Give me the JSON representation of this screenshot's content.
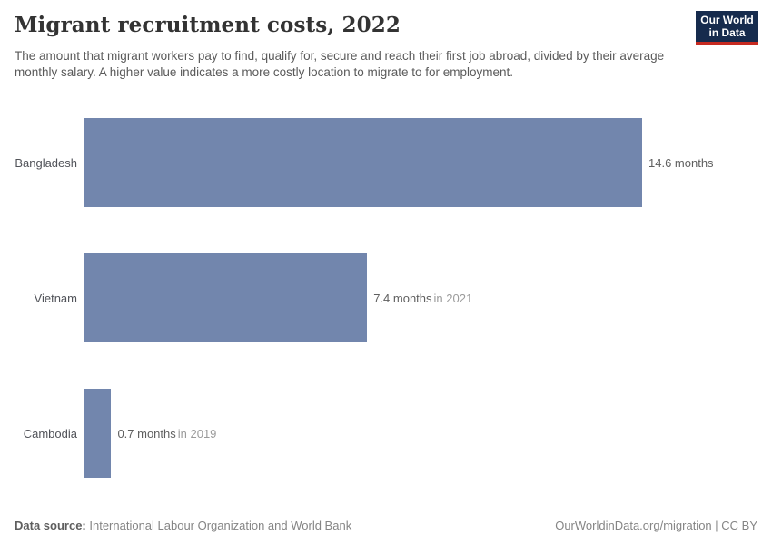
{
  "header": {
    "title": "Migrant recruitment costs, 2022",
    "subtitle": "The amount that migrant workers pay to find, qualify for, secure and reach their first job abroad, divided by their average monthly salary. A higher value indicates a more costly location to migrate to for employment.",
    "logo": {
      "line1": "Our World",
      "line2": "in Data"
    }
  },
  "chart_data": {
    "type": "bar",
    "orientation": "horizontal",
    "title": "Migrant recruitment costs, 2022",
    "categories": [
      "Bangladesh",
      "Vietnam",
      "Cambodia"
    ],
    "values": [
      14.6,
      7.4,
      0.7
    ],
    "unit": "months",
    "xlim": [
      0,
      14.6
    ],
    "grid": false,
    "legend": "none",
    "bar_color": "#7286ad",
    "bars": [
      {
        "entity": "Bangladesh",
        "value": 14.6,
        "value_label": "14.6 months",
        "year_note": ""
      },
      {
        "entity": "Vietnam",
        "value": 7.4,
        "value_label": "7.4 months",
        "year_note": "in 2021"
      },
      {
        "entity": "Cambodia",
        "value": 0.7,
        "value_label": "0.7 months",
        "year_note": "in 2019"
      }
    ]
  },
  "footer": {
    "datasource_label": "Data source:",
    "datasource_value": " International Labour Organization and World Bank",
    "attribution": "OurWorldinData.org/migration | CC BY"
  }
}
